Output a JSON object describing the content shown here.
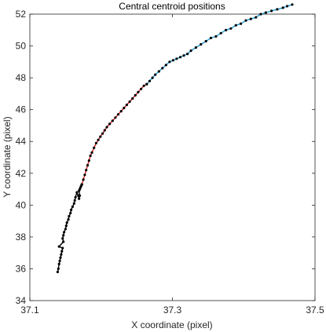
{
  "chart_data": {
    "type": "line",
    "title": "Central centroid positions",
    "xlabel": "X coordinate (pixel)",
    "ylabel": "Y coordinate (pixel)",
    "xlim": [
      37.1,
      37.5
    ],
    "ylim": [
      34,
      52
    ],
    "xticks": [
      "37.1",
      "37.3",
      "37.5"
    ],
    "yticks": [
      "34",
      "36",
      "38",
      "40",
      "42",
      "44",
      "46",
      "48",
      "50",
      "52"
    ],
    "grid": false,
    "series": [
      {
        "color": "#000000",
        "marker": "dot",
        "x": [
          37.139,
          37.14,
          37.141,
          37.142,
          37.143,
          37.144,
          37.145,
          37.146,
          37.141,
          37.147,
          37.146,
          37.147,
          37.148,
          37.15,
          37.151,
          37.152,
          37.154,
          37.155,
          37.157,
          37.158,
          37.16,
          37.162,
          37.163,
          37.164,
          37.166,
          37.168,
          37.169,
          37.17,
          37.169,
          37.17,
          37.171,
          37.172,
          37.173
        ],
        "y": [
          35.8,
          36.0,
          36.3,
          36.5,
          36.7,
          36.9,
          37.1,
          37.3,
          37.4,
          37.7,
          37.9,
          38.1,
          38.3,
          38.5,
          38.7,
          38.9,
          39.1,
          39.3,
          39.5,
          39.7,
          39.9,
          40.1,
          40.3,
          40.5,
          40.8,
          40.6,
          40.4,
          40.6,
          40.9,
          41.0,
          41.1,
          41.2,
          41.3
        ]
      },
      {
        "color": "#d71920",
        "marker": "dot",
        "x": [
          37.173,
          37.175,
          37.177,
          37.179,
          37.181,
          37.183,
          37.185,
          37.187,
          37.19,
          37.193,
          37.196,
          37.199,
          37.202,
          37.205,
          37.208,
          37.212,
          37.216,
          37.22,
          37.224,
          37.228,
          37.232,
          37.236,
          37.24,
          37.244,
          37.248,
          37.252,
          37.256,
          37.26,
          37.264
        ],
        "y": [
          41.3,
          41.6,
          41.9,
          42.2,
          42.5,
          42.8,
          43.1,
          43.3,
          43.6,
          43.9,
          44.1,
          44.3,
          44.5,
          44.7,
          44.9,
          45.1,
          45.3,
          45.5,
          45.7,
          45.9,
          46.1,
          46.3,
          46.5,
          46.7,
          46.9,
          47.1,
          47.3,
          47.5,
          47.6
        ]
      },
      {
        "color": "#1f9fd9",
        "marker": "dot",
        "x": [
          37.264,
          37.268,
          37.272,
          37.276,
          37.281,
          37.286,
          37.291,
          37.296,
          37.301,
          37.306,
          37.311,
          37.316,
          37.321,
          37.326,
          37.333,
          37.34,
          37.347,
          37.354,
          37.361,
          37.368,
          37.375,
          37.382,
          37.389,
          37.396,
          37.403,
          37.41,
          37.417,
          37.424,
          37.431,
          37.439,
          37.447,
          37.455,
          37.461,
          37.468
        ],
        "y": [
          47.6,
          47.8,
          48.0,
          48.2,
          48.4,
          48.6,
          48.8,
          49.0,
          49.1,
          49.2,
          49.3,
          49.4,
          49.5,
          49.7,
          49.9,
          50.1,
          50.3,
          50.5,
          50.6,
          50.8,
          51.0,
          51.1,
          51.3,
          51.4,
          51.6,
          51.7,
          51.8,
          52.0,
          52.1,
          52.2,
          52.3,
          52.4,
          52.5,
          52.6
        ]
      }
    ]
  }
}
